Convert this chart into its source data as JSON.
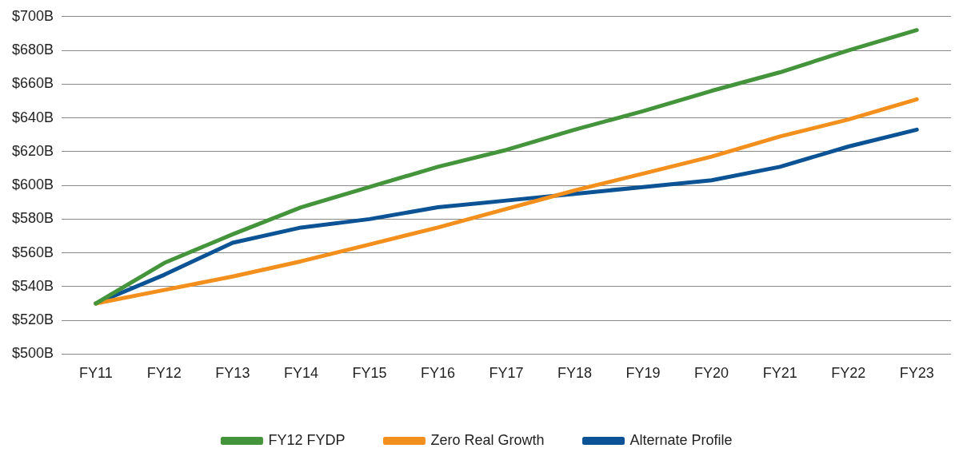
{
  "chart_data": {
    "type": "line",
    "categories": [
      "FY11",
      "FY12",
      "FY13",
      "FY14",
      "FY15",
      "FY16",
      "FY17",
      "FY18",
      "FY19",
      "FY20",
      "FY21",
      "FY22",
      "FY23"
    ],
    "series": [
      {
        "name": "FY12 FYDP",
        "color": "#43943a",
        "values": [
          530,
          554,
          571,
          587,
          599,
          611,
          621,
          633,
          644,
          656,
          667,
          680,
          692
        ]
      },
      {
        "name": "Zero Real Growth",
        "color": "#f3901d",
        "values": [
          530,
          538,
          546,
          555,
          565,
          575,
          586,
          597,
          607,
          617,
          629,
          639,
          651
        ]
      },
      {
        "name": "Alternate Profile",
        "color": "#0b5394",
        "values": [
          530,
          547,
          566,
          575,
          580,
          587,
          591,
          595,
          599,
          603,
          611,
          623,
          633
        ]
      }
    ],
    "ylim": [
      500,
      700
    ],
    "yticks": [
      {
        "value": 500,
        "label": "$500B"
      },
      {
        "value": 520,
        "label": "$520B"
      },
      {
        "value": 540,
        "label": "$540B"
      },
      {
        "value": 560,
        "label": "$560B"
      },
      {
        "value": 580,
        "label": "$580B"
      },
      {
        "value": 600,
        "label": "$600B"
      },
      {
        "value": 620,
        "label": "$620B"
      },
      {
        "value": 640,
        "label": "$640B"
      },
      {
        "value": 660,
        "label": "$660B"
      },
      {
        "value": 680,
        "label": "$680B"
      },
      {
        "value": 700,
        "label": "$700B"
      }
    ],
    "grid": "y",
    "legend": "bottom",
    "marker": "none",
    "line_style": "solid"
  }
}
